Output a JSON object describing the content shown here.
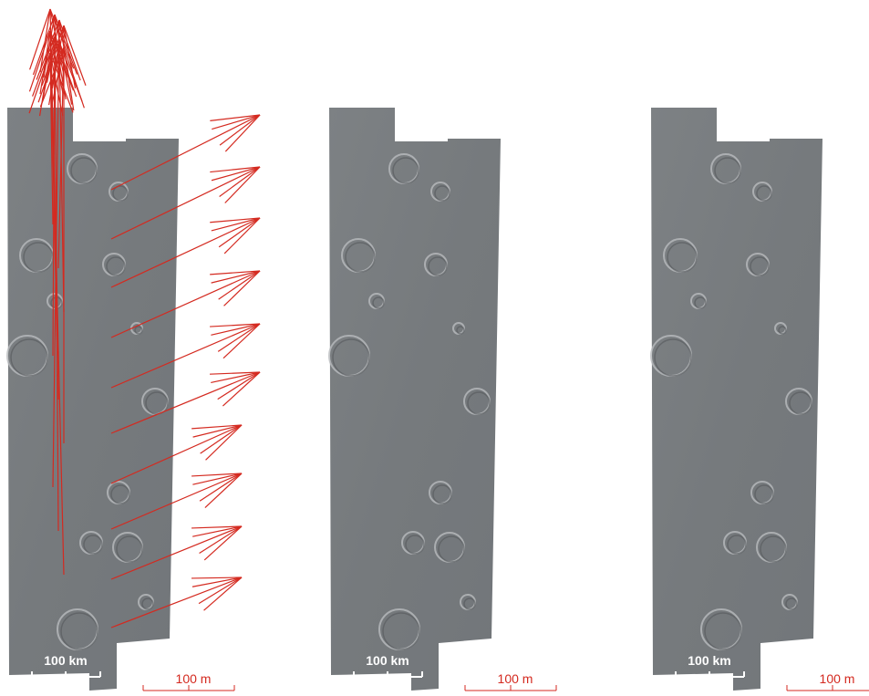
{
  "panels": [
    {
      "scale_km": "100 km",
      "scale_m": "100 m"
    },
    {
      "scale_km": "100 km",
      "scale_m": "100 m"
    },
    {
      "scale_km": "100 km",
      "scale_m": "100 m"
    }
  ]
}
